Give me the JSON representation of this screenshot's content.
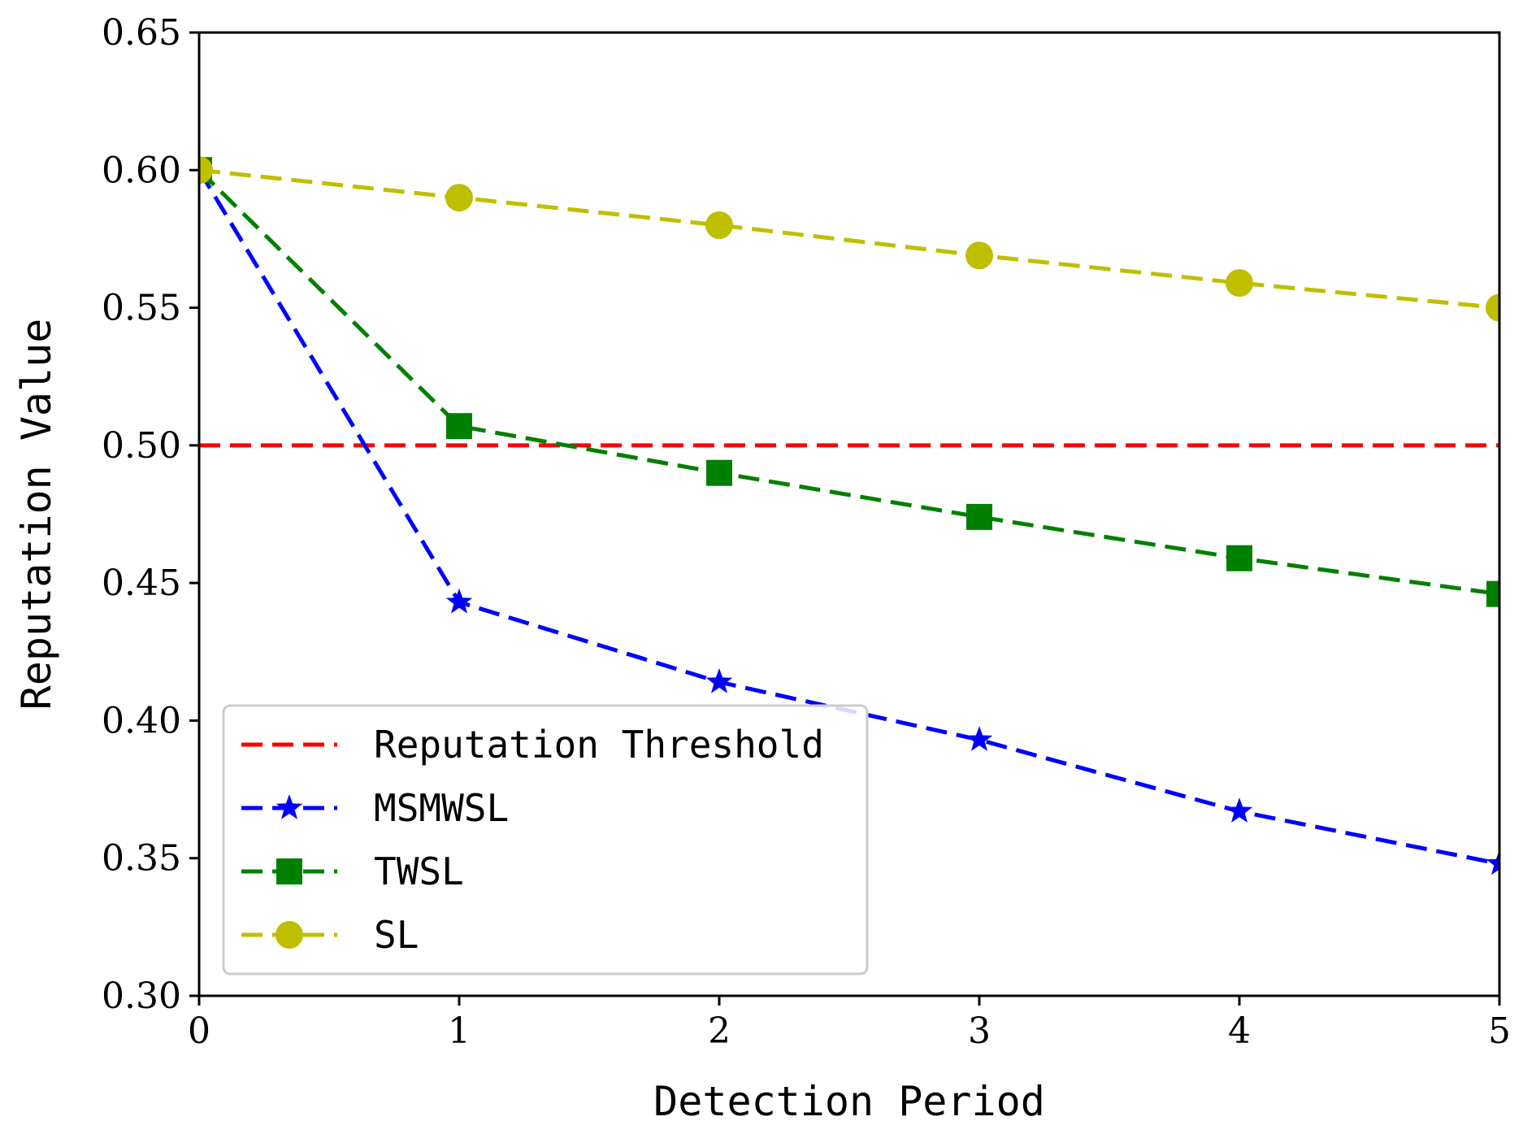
{
  "chart_data": {
    "type": "line",
    "title": "",
    "xlabel": "Detection Period",
    "ylabel": "Reputation Value",
    "xlim": [
      0,
      5
    ],
    "ylim": [
      0.3,
      0.65
    ],
    "xticks": [
      0,
      1,
      2,
      3,
      4,
      5
    ],
    "xtick_labels": [
      "0",
      "1",
      "2",
      "3",
      "4",
      "5"
    ],
    "yticks": [
      0.3,
      0.35,
      0.4,
      0.45,
      0.5,
      0.55,
      0.6,
      0.65
    ],
    "ytick_labels": [
      "0.30",
      "0.35",
      "0.40",
      "0.45",
      "0.50",
      "0.55",
      "0.60",
      "0.65"
    ],
    "grid": false,
    "legend_position": "lower-left",
    "threshold": {
      "name": "Reputation Threshold",
      "value": 0.5,
      "color": "#ff0000",
      "style": "dashed"
    },
    "x": [
      0,
      1,
      2,
      3,
      4,
      5
    ],
    "series": [
      {
        "name": "MSMWSL",
        "color": "#0000ff",
        "marker": "star",
        "style": "dashed",
        "values": [
          0.6,
          0.443,
          0.414,
          0.393,
          0.367,
          0.348
        ]
      },
      {
        "name": "TWSL",
        "color": "#008000",
        "marker": "square",
        "style": "dashed",
        "values": [
          0.6,
          0.507,
          0.49,
          0.474,
          0.459,
          0.446
        ]
      },
      {
        "name": "SL",
        "color": "#bfbf00",
        "marker": "circle",
        "style": "dashed",
        "values": [
          0.6,
          0.59,
          0.58,
          0.569,
          0.559,
          0.55
        ]
      }
    ]
  }
}
